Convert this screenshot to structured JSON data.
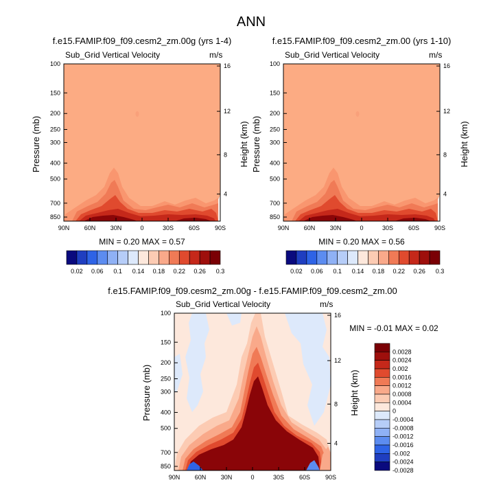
{
  "page": {
    "title": "ANN"
  },
  "chart_data": [
    {
      "type": "heatmap",
      "title": "f.e15.FAMIP.f09_f09.cesm2_zm.00g (yrs 1-4)",
      "variable": "Sub_Grid Vertical Velocity",
      "units": "m/s",
      "ylabel": "Pressure (mb)",
      "ylabel_right": "Height (km)",
      "xticks": [
        "90N",
        "60N",
        "30N",
        "0",
        "30S",
        "60S",
        "90S"
      ],
      "yticks": [
        "100",
        "150",
        "200",
        "250",
        "300",
        "400",
        "500",
        "700",
        "850"
      ],
      "yticks_right": [
        "16",
        "12",
        "8",
        "4"
      ],
      "min_max_label": "MIN =  0.20  MAX =  0.57",
      "background_level": 0.2,
      "features": "values rise toward surface in the tropics and midlatitudes; plume to ~400 mb near 30N"
    },
    {
      "type": "heatmap",
      "title": "f.e15.FAMIP.f09_f09.cesm2_zm.00 (yrs 1-10)",
      "variable": "Sub_Grid Vertical Velocity",
      "units": "m/s",
      "ylabel": "Pressure (mb)",
      "ylabel_right": "Height (km)",
      "xticks": [
        "90N",
        "60N",
        "30N",
        "0",
        "30S",
        "60S",
        "90S"
      ],
      "yticks": [
        "100",
        "150",
        "200",
        "250",
        "300",
        "400",
        "500",
        "700",
        "850"
      ],
      "yticks_right": [
        "16",
        "12",
        "8",
        "4"
      ],
      "min_max_label": "MIN =  0.20  MAX =  0.56",
      "background_level": 0.2
    },
    {
      "type": "heatmap",
      "title": "f.e15.FAMIP.f09_f09.cesm2_zm.00g - f.e15.FAMIP.f09_f09.cesm2_zm.00",
      "variable": "Sub_Grid Vertical Velocity",
      "units": "m/s",
      "ylabel": "Pressure (mb)",
      "ylabel_right": "Height (km)",
      "xticks": [
        "90N",
        "60N",
        "30N",
        "0",
        "30S",
        "60S",
        "90S"
      ],
      "yticks": [
        "100",
        "150",
        "200",
        "250",
        "300",
        "400",
        "500",
        "700",
        "850"
      ],
      "yticks_right": [
        "16",
        "12",
        "8",
        "4"
      ],
      "min_max_label": "MIN =  -0.01  MAX =  0.02",
      "features": "large positive difference in lower troposphere and tropical plume, weak negatives aloft"
    }
  ],
  "colorbars": {
    "top_left": [
      "0.02",
      "0.06",
      "0.1",
      "0.14",
      "0.18",
      "0.22",
      "0.26",
      "0.3"
    ],
    "top_right": [
      "0.02",
      "0.06",
      "0.1",
      "0.14",
      "0.18",
      "0.22",
      "0.26",
      "0.3"
    ],
    "diff": [
      "0.0028",
      "0.0024",
      "0.002",
      "0.0016",
      "0.0012",
      "0.0008",
      "0.0004",
      "0",
      "-0.0004",
      "-0.0008",
      "-0.0012",
      "-0.0016",
      "-0.002",
      "-0.0024",
      "-0.0028"
    ]
  },
  "colors": {
    "top_palette": [
      "#0a0a7e",
      "#1f3ec0",
      "#2e63e6",
      "#5c8cf0",
      "#8fb1f5",
      "#b6cdf8",
      "#dde9fb",
      "#fde8dc",
      "#fccbb3",
      "#f9a98a",
      "#f07a56",
      "#e04a2e",
      "#c5281a",
      "#9e0f0c",
      "#7a0005"
    ],
    "diff_palette": [
      "#7a0005",
      "#9e0f0c",
      "#c5281a",
      "#e04a2e",
      "#f07a56",
      "#f9a98a",
      "#fccbb3",
      "#fde8dc",
      "#dde9fb",
      "#b6cdf8",
      "#8fb1f5",
      "#5c8cf0",
      "#2e63e6",
      "#1f3ec0",
      "#0a0a7e"
    ],
    "panel_background": "#fcab83",
    "diff_background": "#fde8dc"
  }
}
